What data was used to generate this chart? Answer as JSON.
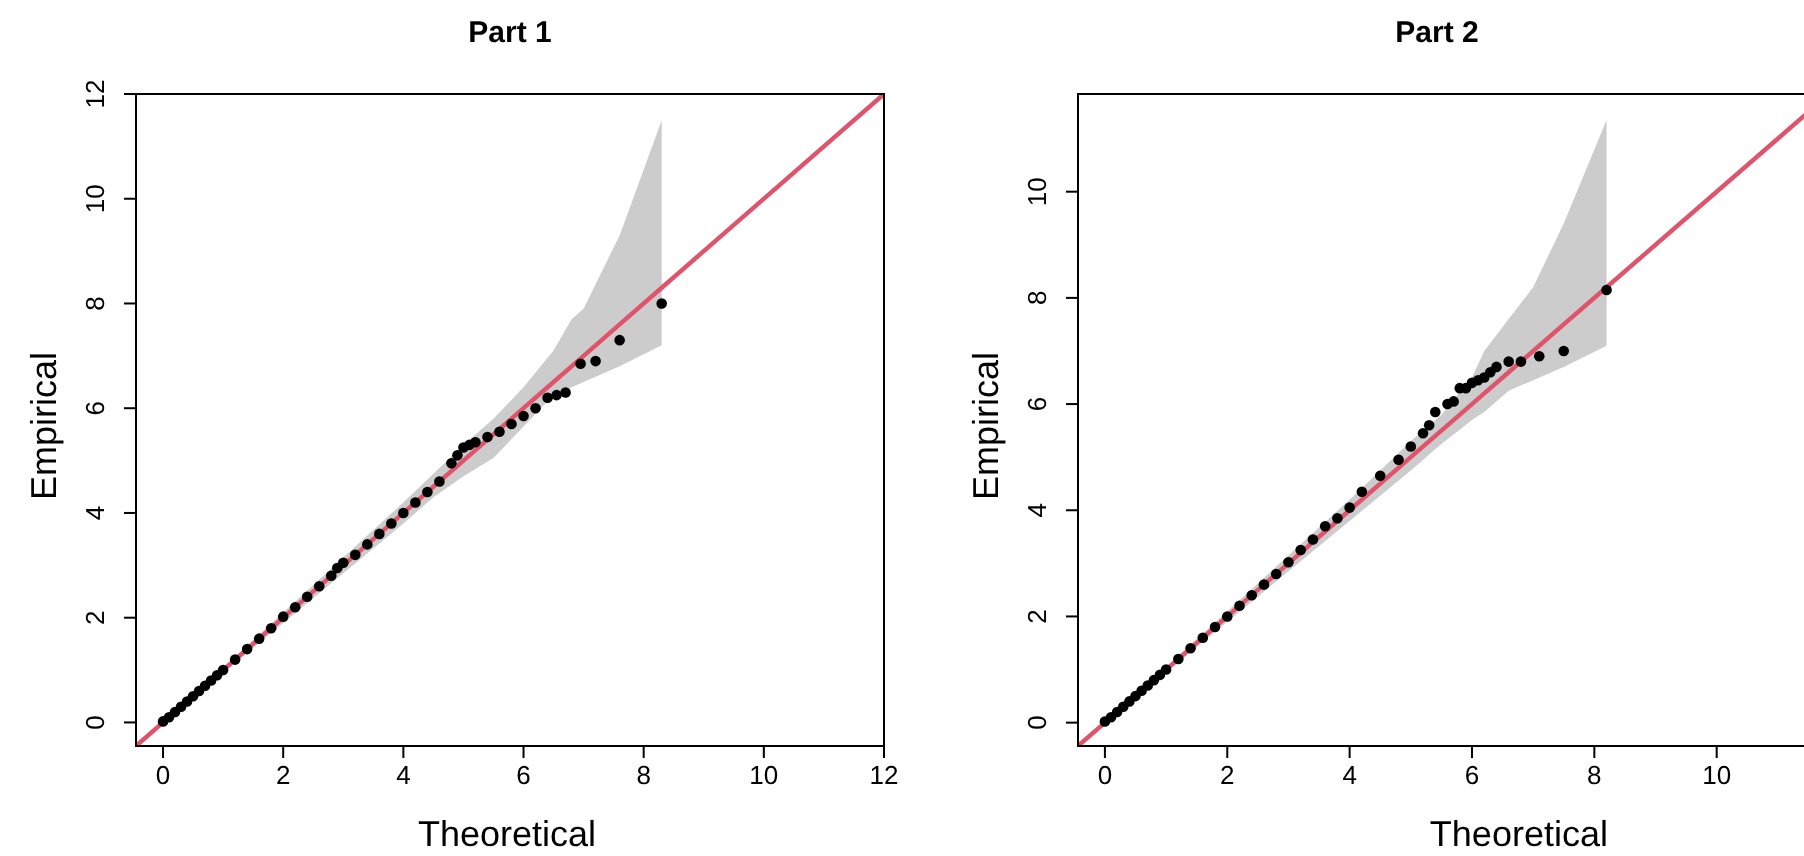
{
  "chart_data": [
    {
      "type": "scatter",
      "title": "Part 1",
      "xlabel": "Theoretical",
      "ylabel": "Empirical",
      "xlim": [
        -0.45,
        12
      ],
      "ylim": [
        -0.45,
        12
      ],
      "xticks": [
        0,
        2,
        4,
        6,
        8,
        10,
        12
      ],
      "yticks": [
        0,
        2,
        4,
        6,
        8,
        10,
        12
      ],
      "grid": false,
      "series": [
        {
          "type": "line",
          "color": "#df536b",
          "x": [
            -0.45,
            0,
            1,
            2,
            3,
            4,
            4.5,
            5,
            5.5,
            6,
            6.5,
            6.8,
            7,
            7.6,
            8.3,
            12
          ],
          "values": [
            -0.45,
            0,
            1,
            2,
            3,
            4,
            4.5,
            5,
            5.5,
            6,
            6.5,
            6.8,
            7,
            7.6,
            8.3,
            12
          ],
          "lower": [
            null,
            -0.05,
            0.95,
            1.9,
            2.85,
            3.8,
            4.3,
            4.7,
            5.05,
            5.65,
            6.25,
            6.4,
            6.5,
            6.8,
            7.2,
            null
          ],
          "upper": [
            null,
            0.05,
            1.05,
            2.1,
            3.15,
            4.2,
            4.75,
            5.3,
            5.8,
            6.4,
            7.1,
            7.7,
            7.9,
            9.3,
            11.5,
            null
          ]
        },
        {
          "type": "scatter",
          "marker": "circle",
          "color": "#000000",
          "x": [
            0,
            0.1,
            0.2,
            0.3,
            0.4,
            0.5,
            0.6,
            0.7,
            0.8,
            0.9,
            1,
            1.2,
            1.4,
            1.6,
            1.8,
            2,
            2.2,
            2.4,
            2.6,
            2.8,
            2.9,
            3,
            3.2,
            3.4,
            3.6,
            3.8,
            4,
            4.2,
            4.4,
            4.6,
            4.8,
            4.9,
            5,
            5.1,
            5.2,
            5.4,
            5.6,
            5.8,
            6,
            6.2,
            6.4,
            6.55,
            6.7,
            6.95,
            7.2,
            7.6,
            8.3
          ],
          "values": [
            0.02,
            0.1,
            0.2,
            0.3,
            0.4,
            0.5,
            0.6,
            0.7,
            0.8,
            0.9,
            1,
            1.2,
            1.4,
            1.6,
            1.8,
            2.02,
            2.2,
            2.4,
            2.6,
            2.8,
            2.95,
            3.05,
            3.2,
            3.4,
            3.6,
            3.8,
            4,
            4.2,
            4.4,
            4.6,
            4.95,
            5.1,
            5.25,
            5.3,
            5.35,
            5.45,
            5.55,
            5.7,
            5.85,
            6.0,
            6.2,
            6.25,
            6.3,
            6.85,
            6.9,
            7.3,
            8.0
          ]
        }
      ]
    },
    {
      "type": "scatter",
      "title": "Part 2",
      "xlabel": "Theoretical",
      "ylabel": "Empirical",
      "xlim": [
        -0.44,
        11.46
      ],
      "ylim": [
        -0.44,
        11.84
      ],
      "xticks": [
        0,
        2,
        4,
        6,
        8,
        10
      ],
      "yticks": [
        0,
        2,
        4,
        6,
        8,
        10
      ],
      "grid": false,
      "series": [
        {
          "type": "line",
          "color": "#df536b",
          "x": [
            -0.44,
            0,
            1,
            2,
            3,
            4,
            5,
            5.5,
            6,
            6.2,
            6.6,
            7,
            7.5,
            8.2,
            11.46
          ],
          "values": [
            -0.44,
            0,
            1,
            2,
            3,
            4,
            5,
            5.5,
            6,
            6.2,
            6.6,
            7,
            7.5,
            8.2,
            11.46
          ],
          "lower": [
            null,
            -0.05,
            0.95,
            1.9,
            2.85,
            3.8,
            4.75,
            5.25,
            5.7,
            5.85,
            6.25,
            6.45,
            6.7,
            7.1,
            null
          ],
          "upper": [
            null,
            0.05,
            1.05,
            2.1,
            3.15,
            4.2,
            5.3,
            5.8,
            6.5,
            7.0,
            7.6,
            8.2,
            9.4,
            11.35,
            null
          ]
        },
        {
          "type": "scatter",
          "marker": "circle",
          "color": "#000000",
          "x": [
            0,
            0.1,
            0.2,
            0.3,
            0.4,
            0.5,
            0.6,
            0.7,
            0.8,
            0.9,
            1,
            1.2,
            1.4,
            1.6,
            1.8,
            2,
            2.2,
            2.4,
            2.6,
            2.8,
            3,
            3.2,
            3.4,
            3.6,
            3.8,
            4,
            4.2,
            4.5,
            4.8,
            5,
            5.2,
            5.3,
            5.4,
            5.6,
            5.7,
            5.8,
            5.9,
            6,
            6.1,
            6.2,
            6.3,
            6.4,
            6.6,
            6.8,
            7.1,
            7.5,
            8.2
          ],
          "values": [
            0.02,
            0.1,
            0.2,
            0.3,
            0.4,
            0.5,
            0.6,
            0.7,
            0.8,
            0.9,
            1,
            1.2,
            1.4,
            1.6,
            1.8,
            2,
            2.2,
            2.4,
            2.6,
            2.8,
            3.02,
            3.25,
            3.45,
            3.7,
            3.85,
            4.05,
            4.35,
            4.65,
            4.95,
            5.2,
            5.45,
            5.6,
            5.85,
            6.0,
            6.05,
            6.3,
            6.3,
            6.4,
            6.45,
            6.5,
            6.6,
            6.7,
            6.8,
            6.8,
            6.9,
            7.0,
            8.15
          ]
        }
      ]
    }
  ]
}
